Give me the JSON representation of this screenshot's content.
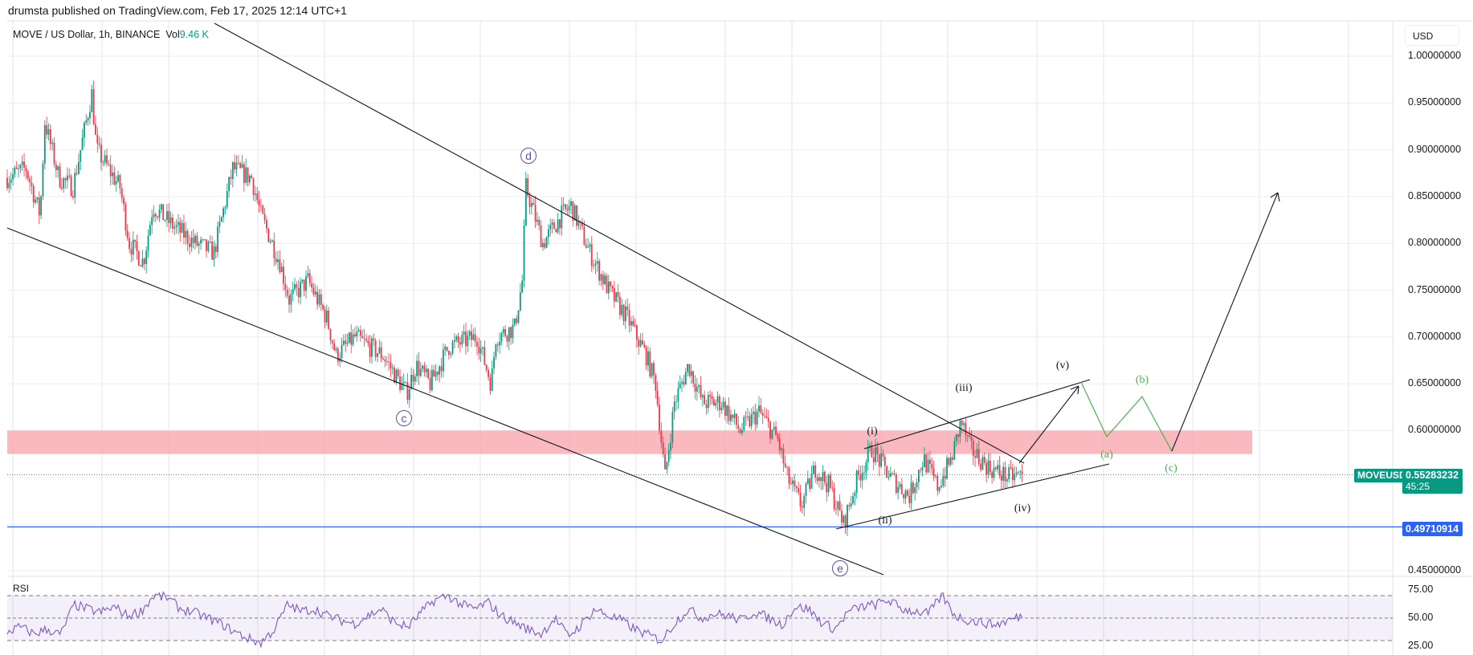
{
  "header": {
    "published": "drumsta published on TradingView.com, Feb 17, 2025 12:14 UTC+1"
  },
  "legend": {
    "symbol": "MOVE / US Dollar, 1h, BINANCE",
    "vol_label": "Vol",
    "vol_value": "9.46 K"
  },
  "axis": {
    "currency": "USD",
    "price_labels": [
      "1.00000000",
      "0.95000000",
      "0.90000000",
      "0.85000000",
      "0.80000000",
      "0.75000000",
      "0.70000000",
      "0.65000000",
      "0.60000000",
      "0.45000000"
    ],
    "rsi_labels": [
      "75.00",
      "50.00",
      "25.00"
    ]
  },
  "tags": {
    "symbol": "MOVEUSD",
    "last_price": "0.55283232",
    "countdown": "45:25",
    "level": "0.49710914"
  },
  "colors": {
    "up": "#089981",
    "down": "#f23645",
    "zone": "#f7a1a8",
    "rsi": "#7e57c2",
    "level": "#2962ff",
    "projection": "#4caf50"
  },
  "annotations": {
    "circled": [
      "c",
      "d",
      "e"
    ],
    "impulse": [
      "(i)",
      "(ii)",
      "(iii)",
      "(iv)",
      "(v)"
    ],
    "correction": [
      "(a)",
      "(b)",
      "(c)"
    ]
  },
  "rsi": {
    "title": "RSI"
  },
  "chart_data": {
    "type": "candlestick",
    "title": "MOVE / US Dollar, 1h, BINANCE",
    "ylim": [
      0.45,
      1.0
    ],
    "y_ticks": [
      0.45,
      0.6,
      0.65,
      0.7,
      0.75,
      0.8,
      0.85,
      0.9,
      0.95,
      1.0
    ],
    "approx_close_path": [
      [
        0,
        0.87
      ],
      [
        20,
        0.88
      ],
      [
        35,
        0.83
      ],
      [
        40,
        0.93
      ],
      [
        55,
        0.87
      ],
      [
        70,
        0.86
      ],
      [
        90,
        0.96
      ],
      [
        95,
        0.9
      ],
      [
        120,
        0.86
      ],
      [
        130,
        0.8
      ],
      [
        145,
        0.78
      ],
      [
        155,
        0.84
      ],
      [
        175,
        0.82
      ],
      [
        200,
        0.8
      ],
      [
        220,
        0.79
      ],
      [
        240,
        0.88
      ],
      [
        260,
        0.87
      ],
      [
        270,
        0.83
      ],
      [
        290,
        0.78
      ],
      [
        300,
        0.74
      ],
      [
        320,
        0.76
      ],
      [
        340,
        0.72
      ],
      [
        350,
        0.68
      ],
      [
        370,
        0.7
      ],
      [
        400,
        0.68
      ],
      [
        425,
        0.64
      ],
      [
        435,
        0.67
      ],
      [
        450,
        0.65
      ],
      [
        470,
        0.69
      ],
      [
        500,
        0.7
      ],
      [
        515,
        0.65
      ],
      [
        520,
        0.7
      ],
      [
        540,
        0.71
      ],
      [
        548,
        0.76
      ],
      [
        552,
        0.86
      ],
      [
        570,
        0.8
      ],
      [
        590,
        0.83
      ],
      [
        600,
        0.84
      ],
      [
        620,
        0.79
      ],
      [
        640,
        0.75
      ],
      [
        660,
        0.72
      ],
      [
        680,
        0.68
      ],
      [
        690,
        0.65
      ],
      [
        700,
        0.55
      ],
      [
        710,
        0.63
      ],
      [
        725,
        0.67
      ],
      [
        740,
        0.63
      ],
      [
        760,
        0.63
      ],
      [
        780,
        0.6
      ],
      [
        800,
        0.62
      ],
      [
        820,
        0.59
      ],
      [
        830,
        0.55
      ],
      [
        845,
        0.52
      ],
      [
        860,
        0.56
      ],
      [
        875,
        0.54
      ],
      [
        890,
        0.5
      ],
      [
        905,
        0.55
      ],
      [
        920,
        0.58
      ],
      [
        940,
        0.55
      ],
      [
        960,
        0.53
      ],
      [
        975,
        0.57
      ],
      [
        990,
        0.54
      ],
      [
        1005,
        0.57
      ],
      [
        1015,
        0.61
      ],
      [
        1025,
        0.58
      ],
      [
        1045,
        0.56
      ],
      [
        1065,
        0.55
      ],
      [
        1080,
        0.553
      ]
    ],
    "last_price": 0.55283232,
    "support_level": 0.49710914,
    "resistance_zone": [
      0.575,
      0.6
    ],
    "rsi": {
      "ylim": [
        25,
        75
      ],
      "bands": [
        30,
        50,
        70
      ],
      "values": [
        38,
        42,
        36,
        40,
        35,
        62,
        58,
        55,
        60,
        52,
        56,
        70,
        68,
        58,
        55,
        50,
        45,
        38,
        32,
        28,
        40,
        62,
        56,
        58,
        52,
        48,
        45,
        52,
        58,
        46,
        42,
        55,
        66,
        70,
        62,
        58,
        64,
        52,
        46,
        40,
        36,
        50,
        34,
        44,
        58,
        52,
        48,
        40,
        35,
        30,
        46,
        58,
        50,
        54,
        52,
        48,
        56,
        50,
        44,
        60,
        58,
        46,
        40,
        56,
        60,
        62,
        66,
        58,
        56,
        54,
        70,
        52,
        48,
        46,
        44,
        48,
        52
      ]
    }
  }
}
